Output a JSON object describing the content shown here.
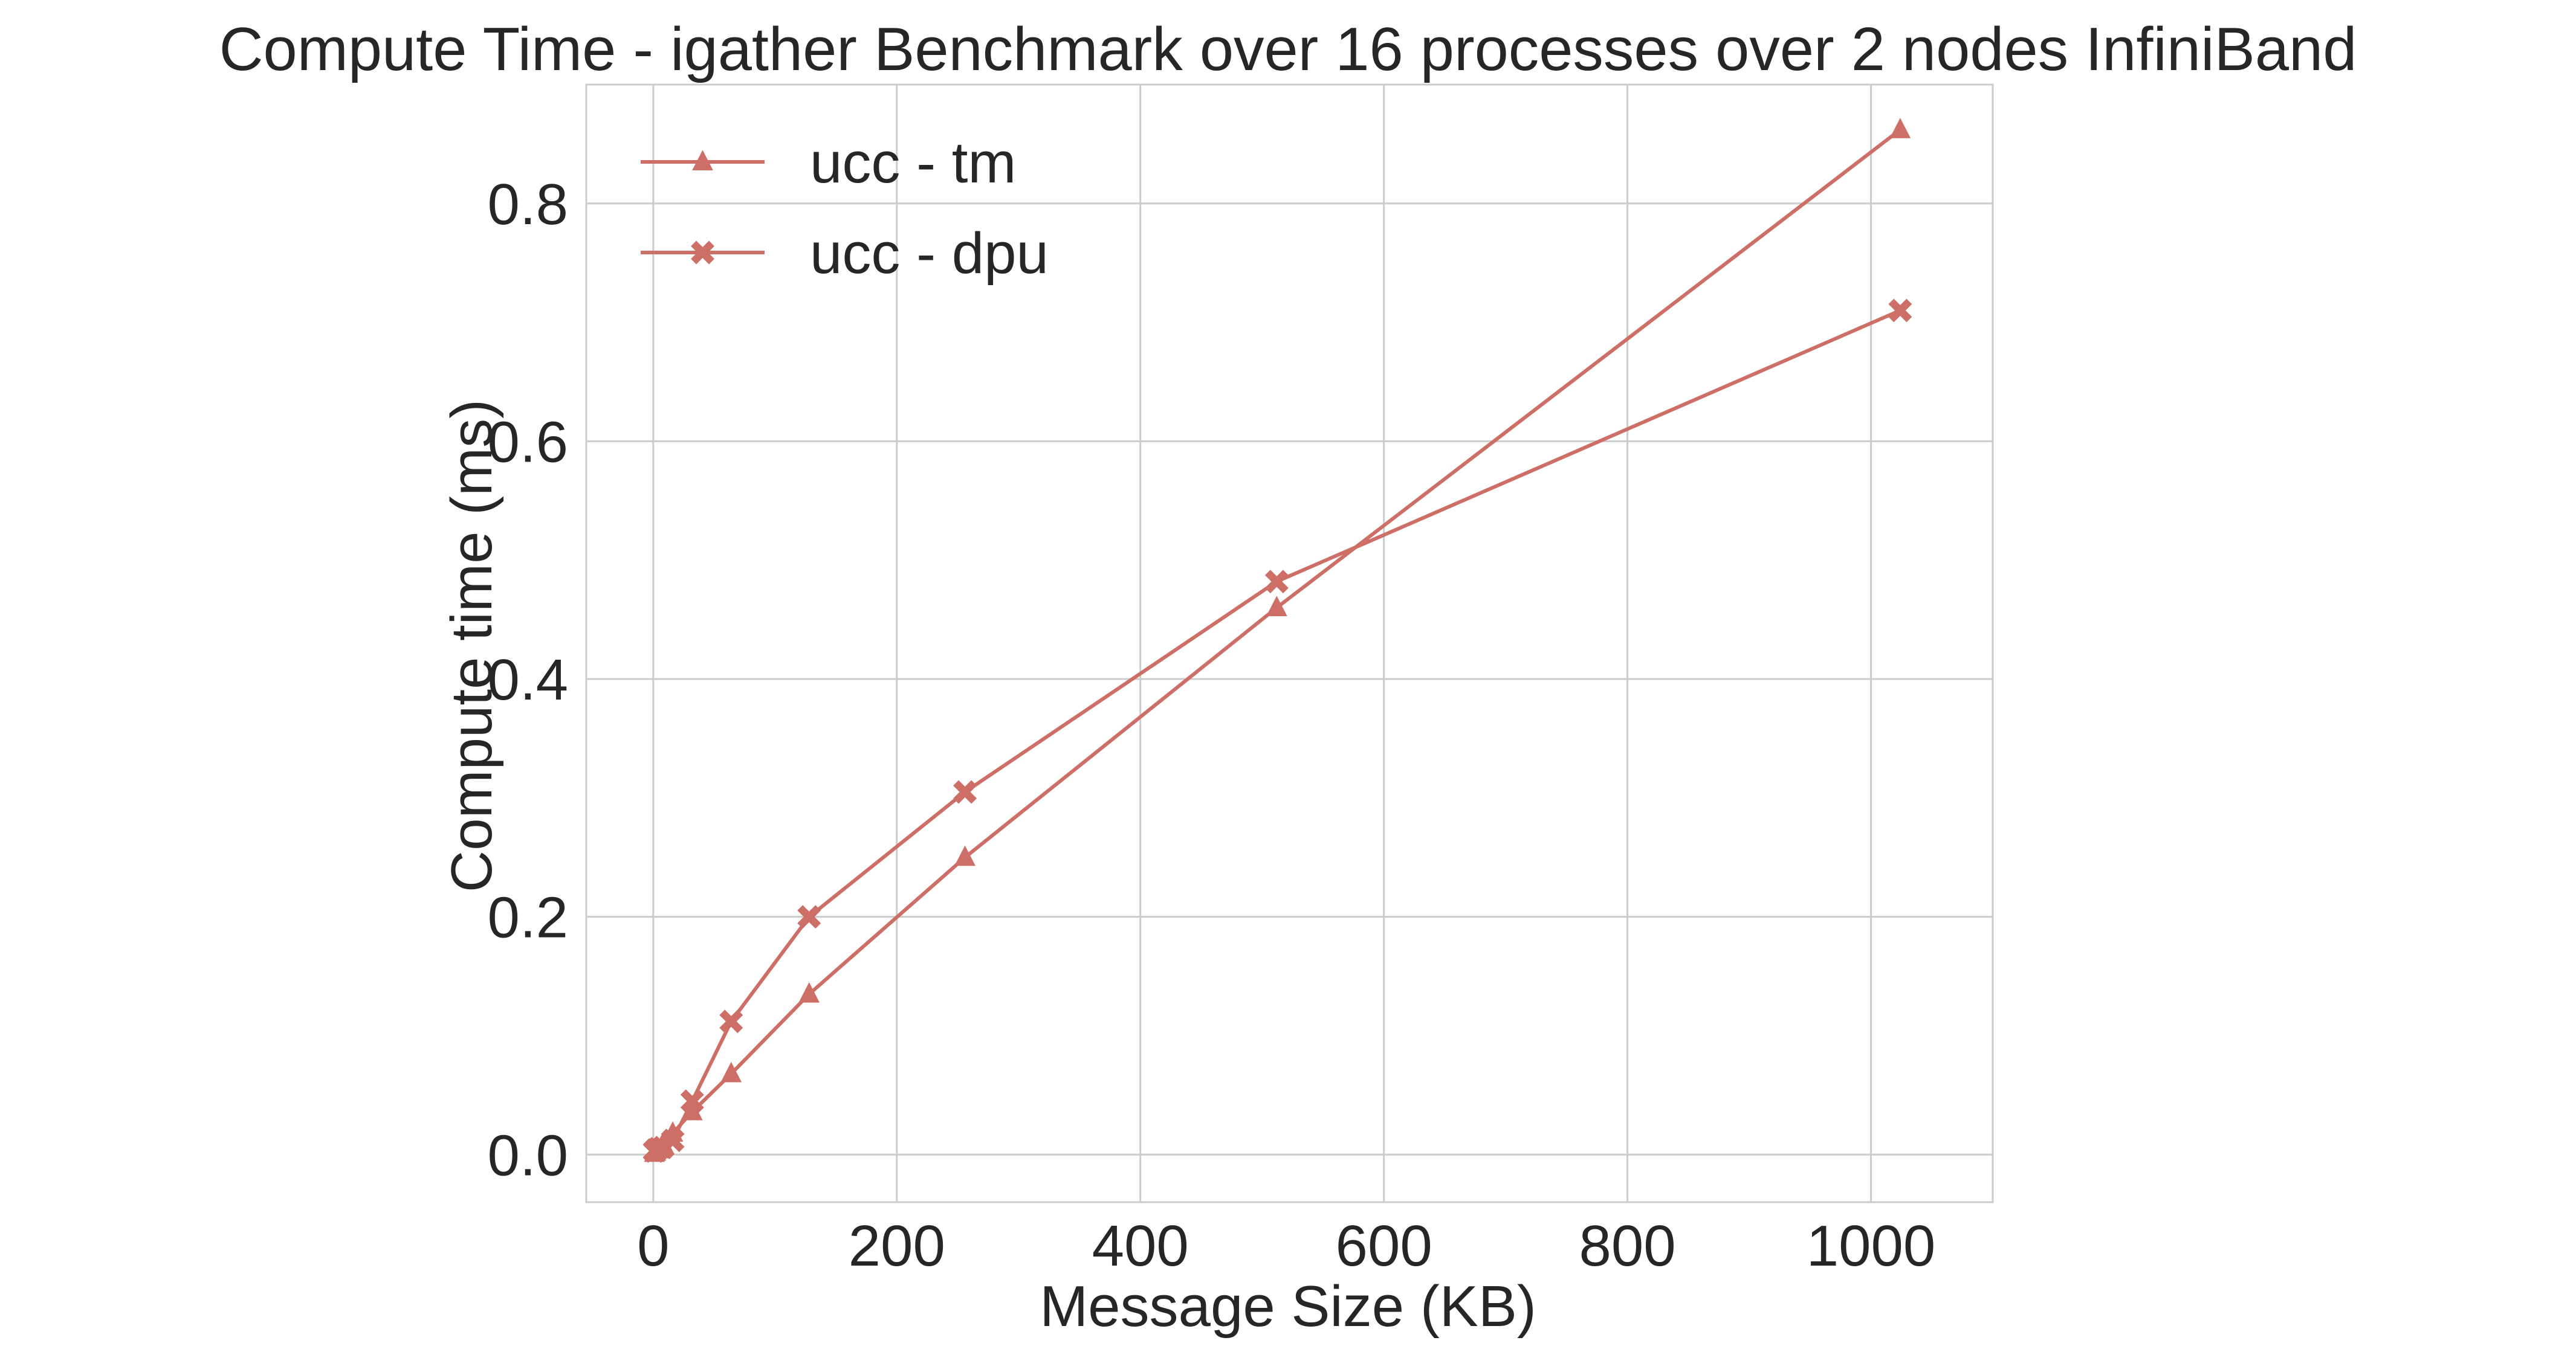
{
  "chart_data": {
    "type": "line",
    "title": "Compute Time - igather Benchmark over 16 processes over 2 nodes InfiniBand",
    "xlabel": "Message Size (KB)",
    "ylabel": "Compute time (ms)",
    "xlim": [
      -55,
      1100
    ],
    "ylim": [
      -0.04,
      0.9
    ],
    "x_ticks": [
      {
        "value": 0,
        "label": "0"
      },
      {
        "value": 200,
        "label": "200"
      },
      {
        "value": 400,
        "label": "400"
      },
      {
        "value": 600,
        "label": "600"
      },
      {
        "value": 800,
        "label": "800"
      },
      {
        "value": 1000,
        "label": "1000"
      }
    ],
    "y_ticks": [
      {
        "value": 0.0,
        "label": "0.0"
      },
      {
        "value": 0.2,
        "label": "0.2"
      },
      {
        "value": 0.4,
        "label": "0.4"
      },
      {
        "value": 0.6,
        "label": "0.6"
      },
      {
        "value": 0.8,
        "label": "0.8"
      }
    ],
    "grid": true,
    "legend_position": "top-left",
    "series": [
      {
        "name": "ucc - tm",
        "marker": "triangle",
        "color": "#cd6f66",
        "x": [
          1,
          2,
          4,
          8,
          16,
          32,
          64,
          128,
          256,
          512,
          1024
        ],
        "y": [
          0.001,
          0.002,
          0.004,
          0.009,
          0.018,
          0.036,
          0.068,
          0.135,
          0.25,
          0.46,
          0.862
        ]
      },
      {
        "name": "ucc - dpu",
        "marker": "x",
        "color": "#cd6f66",
        "x": [
          1,
          2,
          4,
          8,
          16,
          32,
          64,
          128,
          256,
          512,
          1024
        ],
        "y": [
          0.003,
          0.004,
          0.005,
          0.006,
          0.012,
          0.045,
          0.112,
          0.2,
          0.305,
          0.482,
          0.71
        ]
      }
    ]
  }
}
